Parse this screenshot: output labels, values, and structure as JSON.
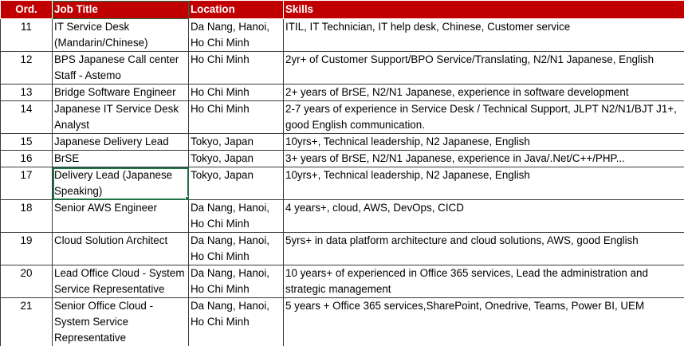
{
  "headers": {
    "ord": "Ord.",
    "job_title": "Job Title",
    "location": "Location",
    "skills": "Skills"
  },
  "rows": [
    {
      "ord": "11",
      "title": "IT Service Desk\n(Mandarin/Chinese)",
      "location": "Da Nang,  Hanoi,\nHo Chi Minh",
      "skills": "ITIL, IT Technician, IT help desk, Chinese, Customer service"
    },
    {
      "ord": "12",
      "title": "BPS Japanese Call center\nStaff - Astemo",
      "location": "Ho Chi Minh",
      "skills": "2yr+ of Customer Support/BPO Service/Translating, N2/N1 Japanese, English"
    },
    {
      "ord": "13",
      "title": "Bridge Software Engineer",
      "location": "Ho Chi Minh",
      "skills": "2+ years of BrSE, N2/N1 Japanese, experience in software development"
    },
    {
      "ord": "14",
      "title": "Japanese IT Service Desk\nAnalyst",
      "location": "Ho Chi Minh",
      "skills": "2-7 years of experience in Service Desk / Technical Support, JLPT N2/N1/BJT J1+,\ngood English communication."
    },
    {
      "ord": "15",
      "title": "Japanese Delivery Lead",
      "location": "Tokyo, Japan",
      "skills": "10yrs+, Technical leadership, N2 Japanese, English"
    },
    {
      "ord": "16",
      "title": "BrSE",
      "location": "Tokyo, Japan",
      "skills": "3+ years of BrSE, N2/N1 Japanese, experience in Java/.Net/C++/PHP..."
    },
    {
      "ord": "17",
      "title": "Delivery Lead (Japanese\nSpeaking)",
      "location": "Tokyo, Japan",
      "skills": "10yrs+, Technical leadership, N2 Japanese, English"
    },
    {
      "ord": "18",
      "title": "Senior AWS Engineer",
      "location": "Da Nang,  Hanoi,\n Ho Chi Minh",
      "skills": "4 years+, cloud, AWS, DevOps, CICD"
    },
    {
      "ord": "19",
      "title": "Cloud Solution Architect",
      "location": "Da Nang,  Hanoi,\nHo Chi Minh",
      "skills": "5yrs+ in data platform architecture and cloud solutions, AWS, good English"
    },
    {
      "ord": "20",
      "title": "Lead Office Cloud - System\nService Representative",
      "location": "Da Nang, Hanoi,\n Ho Chi Minh",
      "skills": "10 years+ of experienced in Office 365 services,  Lead the administration and\nstrategic management"
    },
    {
      "ord": "21",
      "title": "Senior Office Cloud -\nSystem Service\nRepresentative",
      "location": "Da Nang,  Hanoi,\n Ho Chi Minh",
      "skills": "5 years + Office 365 services,SharePoint, Onedrive, Teams,  Power BI, UEM"
    }
  ],
  "colors": {
    "header_bg": "#c00000",
    "header_text": "#ffffff",
    "selection": "#1e7145",
    "grid": "#3a3a3a"
  }
}
